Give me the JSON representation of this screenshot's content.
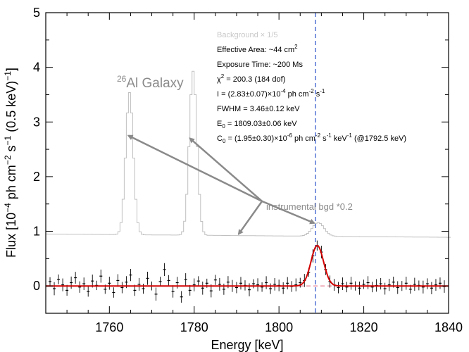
{
  "chart_data": {
    "type": "line",
    "xlabel": "Energy [keV]",
    "ylabel": "Flux [10^-4 ph cm^-2 s^-1 (0.5 keV)^-1]",
    "xlim": [
      1745,
      1840
    ],
    "ylim": [
      -0.5,
      5
    ],
    "x_ticks": [
      1760,
      1780,
      1800,
      1820,
      1840
    ],
    "y_ticks": [
      0,
      1,
      2,
      3,
      4,
      5
    ],
    "grid": false,
    "colors": {
      "background_curve": "#c0c0c0",
      "data": "#000000",
      "fit": "#d40000",
      "baseline": "#e0607a",
      "line_marker": "#3a5fcd",
      "annotation": "#8a8a8a"
    },
    "annotations": {
      "al26_sup": "26",
      "al26_label": "Al Galaxy",
      "instrumental_label": "instrumental bgd *0.2"
    },
    "info_lines": {
      "background": "Background × 1/5",
      "effective_area": "Effective Area: ~44 cm",
      "effective_area_exp": "2",
      "exposure": "Exposure Time: ~200 Ms",
      "chi2": "χ",
      "chi2_sup": "2",
      "chi2_val": " = 200.3 (184 dof)",
      "intensity": "I = (2.83±0.07)×10",
      "intensity_e1": "-4",
      "intensity_m": " ph cm",
      "intensity_e2": "-2",
      "intensity_s": " s",
      "intensity_e3": "-1",
      "fwhm": "FWHM = 3.46±0.12 keV",
      "e0": "E",
      "e0_sub": "0",
      "e0_val": " = 1809.03±0.06 keV",
      "c0": "C",
      "c0_sub": "0",
      "c0_val": " = (1.95±0.30)×10",
      "c0_e1": "-6",
      "c0_m1": " ph cm",
      "c0_e2": "-2",
      "c0_m2": " s",
      "c0_e3": "-1",
      "c0_m3": " keV",
      "c0_e4": "-1",
      "c0_m4": " (@1792.5 keV)"
    },
    "line_energy_marker": 1808.6,
    "background_peaks": [
      {
        "center": 1764.5,
        "amplitude": 2.6,
        "width": 0.9
      },
      {
        "center": 1779.5,
        "amplitude": 3.0,
        "width": 0.9
      },
      {
        "center": 1809,
        "amplitude": 0.25,
        "width": 1.4
      }
    ],
    "background_continuum": 0.95,
    "fit": {
      "center": 1809.03,
      "fwhm": 3.46,
      "peak": 0.74,
      "baseline": 0.0
    },
    "series": [
      {
        "name": "data",
        "x": [
          1746,
          1747,
          1748,
          1749,
          1750,
          1751,
          1752,
          1753,
          1754,
          1755,
          1756,
          1757,
          1758,
          1759,
          1760,
          1761,
          1762,
          1763,
          1764,
          1765,
          1766,
          1767,
          1768,
          1769,
          1770,
          1771,
          1772,
          1773,
          1774,
          1775,
          1776,
          1777,
          1778,
          1779,
          1780,
          1781,
          1782,
          1783,
          1784,
          1785,
          1786,
          1787,
          1788,
          1789,
          1790,
          1791,
          1792,
          1793,
          1794,
          1795,
          1796,
          1797,
          1798,
          1799,
          1800,
          1801,
          1802,
          1803,
          1804,
          1805,
          1806,
          1807,
          1808,
          1809,
          1810,
          1811,
          1812,
          1813,
          1814,
          1815,
          1816,
          1817,
          1818,
          1819,
          1820,
          1821,
          1822,
          1823,
          1824,
          1825,
          1826,
          1827,
          1828,
          1829,
          1830,
          1831,
          1832,
          1833,
          1834,
          1835,
          1836,
          1837,
          1838,
          1839
        ],
        "y": [
          0.08,
          -0.05,
          0.12,
          0.02,
          -0.08,
          0.06,
          0.15,
          -0.02,
          0.04,
          -0.1,
          0.09,
          0.01,
          0.18,
          -0.06,
          0.05,
          -0.12,
          0.1,
          -0.03,
          0.07,
          0.2,
          -0.08,
          0.03,
          -0.05,
          0.14,
          0.0,
          -0.15,
          0.08,
          0.3,
          0.1,
          -0.1,
          0.06,
          -0.2,
          0.12,
          -0.08,
          0.02,
          0.09,
          -0.04,
          0.05,
          -0.09,
          0.11,
          0.03,
          -0.06,
          0.07,
          0.0,
          -0.03,
          0.05,
          0.01,
          -0.07,
          0.04,
          0.02,
          -0.02,
          0.06,
          -0.05,
          0.03,
          0.01,
          -0.04,
          0.05,
          -0.01,
          0.02,
          0.06,
          0.1,
          0.25,
          0.55,
          0.74,
          0.62,
          0.3,
          0.08,
          0.02,
          -0.03,
          0.04,
          -0.02,
          0.05,
          0.0,
          -0.04,
          0.03,
          0.06,
          -0.02,
          0.01,
          0.04,
          -0.05,
          0.02,
          0.07,
          -0.03,
          0.0,
          0.05,
          -0.06,
          0.03,
          0.01,
          -0.02,
          0.04,
          -0.04,
          0.02,
          0.05,
          -0.01
        ]
      }
    ]
  }
}
